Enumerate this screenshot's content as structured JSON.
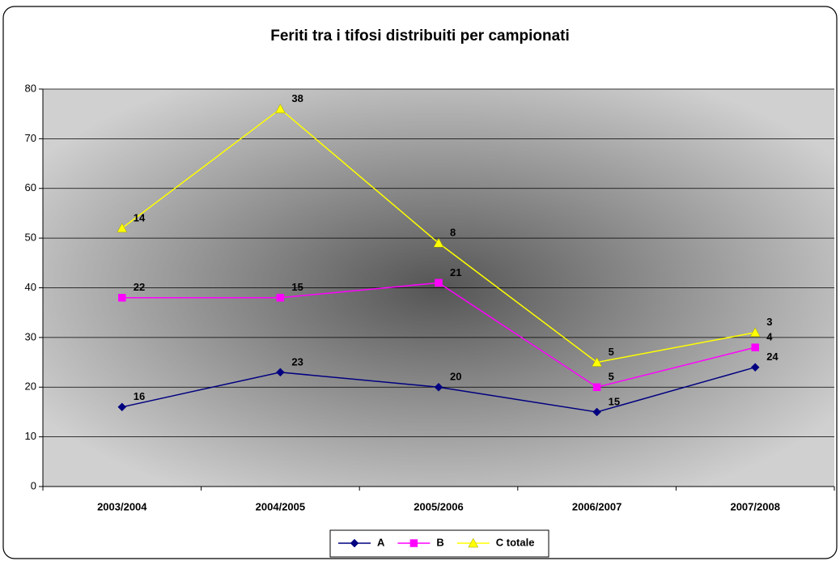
{
  "chart_data": {
    "type": "line",
    "stacked": true,
    "title": "Feriti tra i tifosi distribuiti per campionati",
    "categories": [
      "2003/2004",
      "2004/2005",
      "2005/2006",
      "2006/2007",
      "2007/2008"
    ],
    "series": [
      {
        "name": "A",
        "color": "#000080",
        "marker": "diamond",
        "values": [
          16,
          23,
          20,
          15,
          24
        ]
      },
      {
        "name": "B",
        "color": "#ff00ff",
        "marker": "square",
        "values": [
          22,
          15,
          21,
          5,
          4
        ]
      },
      {
        "name": "C totale",
        "color": "#ffff00",
        "marker": "triangle",
        "values": [
          14,
          38,
          8,
          5,
          3
        ]
      }
    ],
    "ylim": [
      0,
      80
    ],
    "yticks": [
      0,
      10,
      20,
      30,
      40,
      50,
      60,
      70,
      80
    ],
    "grid": true,
    "legend": "bottom"
  }
}
